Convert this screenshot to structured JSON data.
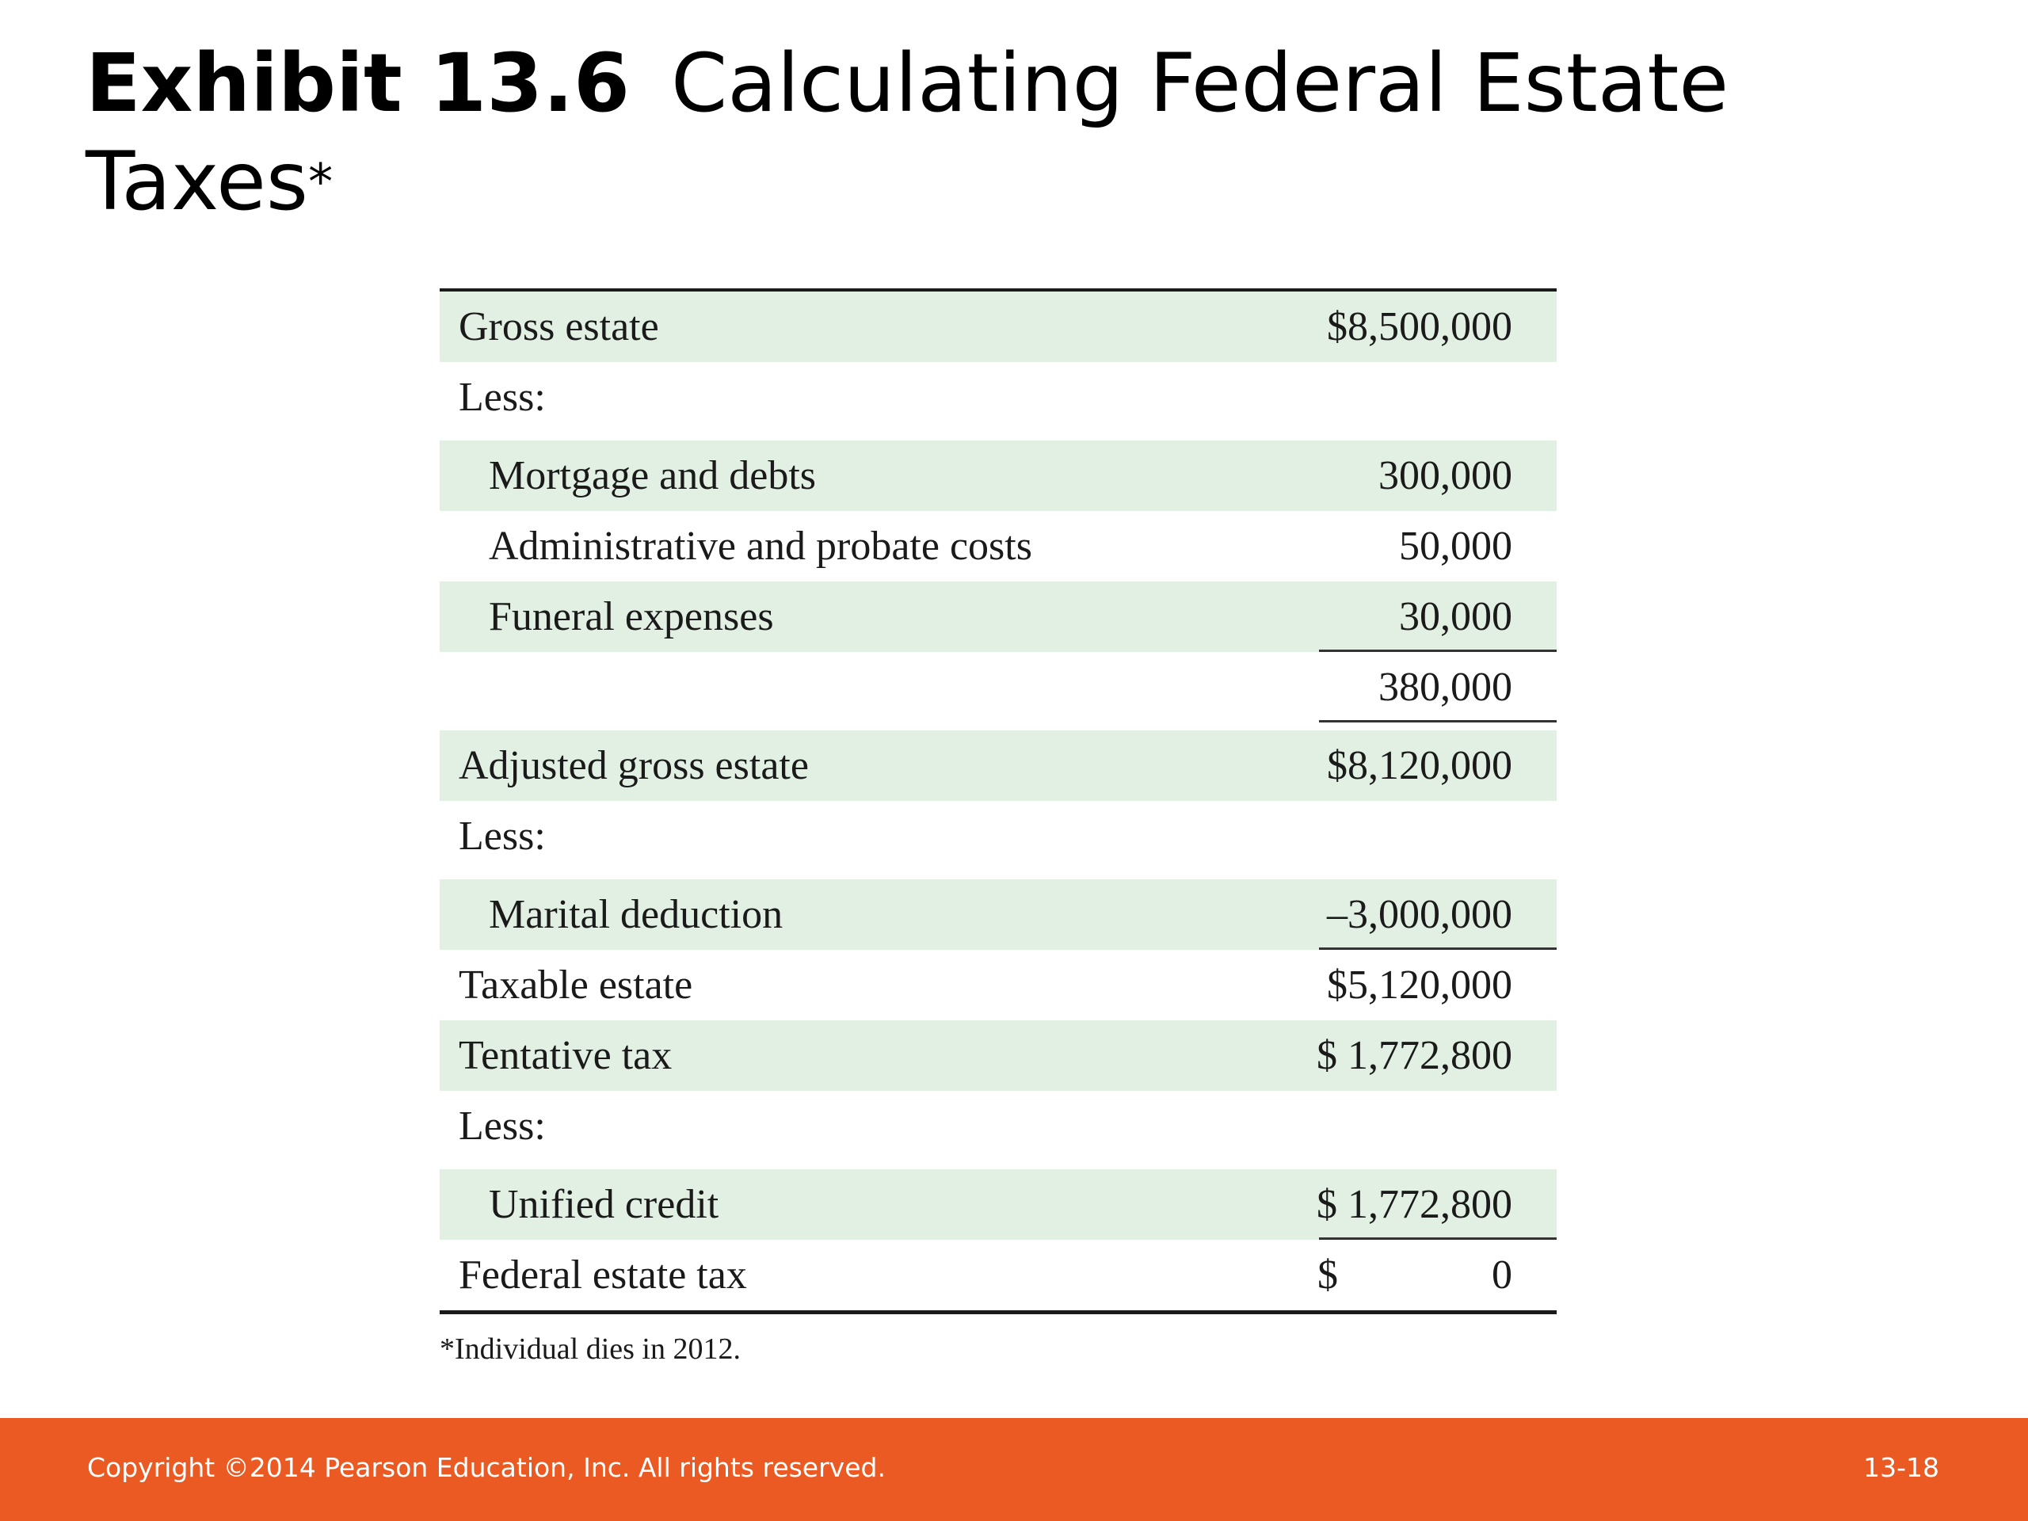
{
  "title": {
    "exhibit": "Exhibit 13.6",
    "text_line1": "Calculating Federal Estate",
    "text_line2": "Taxes",
    "asterisk": "*"
  },
  "table": {
    "rows": [
      {
        "label": "Gross estate",
        "value": "$8,500,000"
      },
      {
        "label": "Less:",
        "value": ""
      },
      {
        "label": "Mortgage and debts",
        "value": "300,000"
      },
      {
        "label": "Administrative and probate costs",
        "value": "50,000"
      },
      {
        "label": "Funeral expenses",
        "value": "30,000"
      },
      {
        "label": "",
        "value": "380,000"
      },
      {
        "label": "Adjusted gross estate",
        "value": "$8,120,000"
      },
      {
        "label": "Less:",
        "value": ""
      },
      {
        "label": "Marital deduction",
        "value": "–3,000,000"
      },
      {
        "label": "Taxable estate",
        "value": "$5,120,000"
      },
      {
        "label": "Tentative tax",
        "value": "$ 1,772,800"
      },
      {
        "label": "Less:",
        "value": ""
      },
      {
        "label": "Unified credit",
        "value": "$ 1,772,800"
      },
      {
        "label": "Federal estate tax",
        "dollar": "$",
        "value": "0"
      }
    ],
    "footnote": "*Individual dies in 2012."
  },
  "footer": {
    "copyright": "Copyright ©2014 Pearson Education, Inc. All rights reserved.",
    "page": "13-18",
    "color": "#ea5a22"
  },
  "colors": {
    "row_shade": "#e2f0e3"
  }
}
